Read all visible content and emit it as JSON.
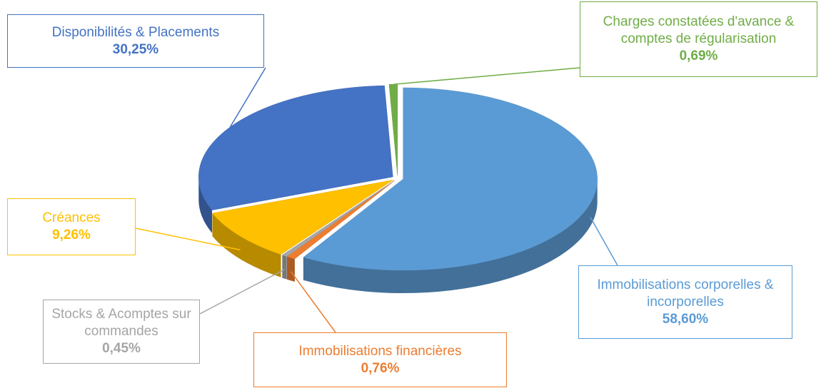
{
  "chart_data": {
    "type": "pie",
    "categories": [
      "Immobilisations corporelles & incorporelles",
      "Immobilisations financières",
      "Stocks & Acomptes sur commandes",
      "Créances",
      "Disponibilités & Placements",
      "Charges constatées d'avance & comptes de régularisation"
    ],
    "values": [
      58.6,
      0.76,
      0.45,
      9.26,
      30.25,
      0.69
    ],
    "value_labels": [
      "58,60%",
      "0,76%",
      "0,45%",
      "9,26%",
      "30,25%",
      "0,69%"
    ],
    "colors": [
      "#5b9bd5",
      "#ed7d31",
      "#a5a5a5",
      "#ffc000",
      "#4472c4",
      "#70ad47"
    ]
  }
}
